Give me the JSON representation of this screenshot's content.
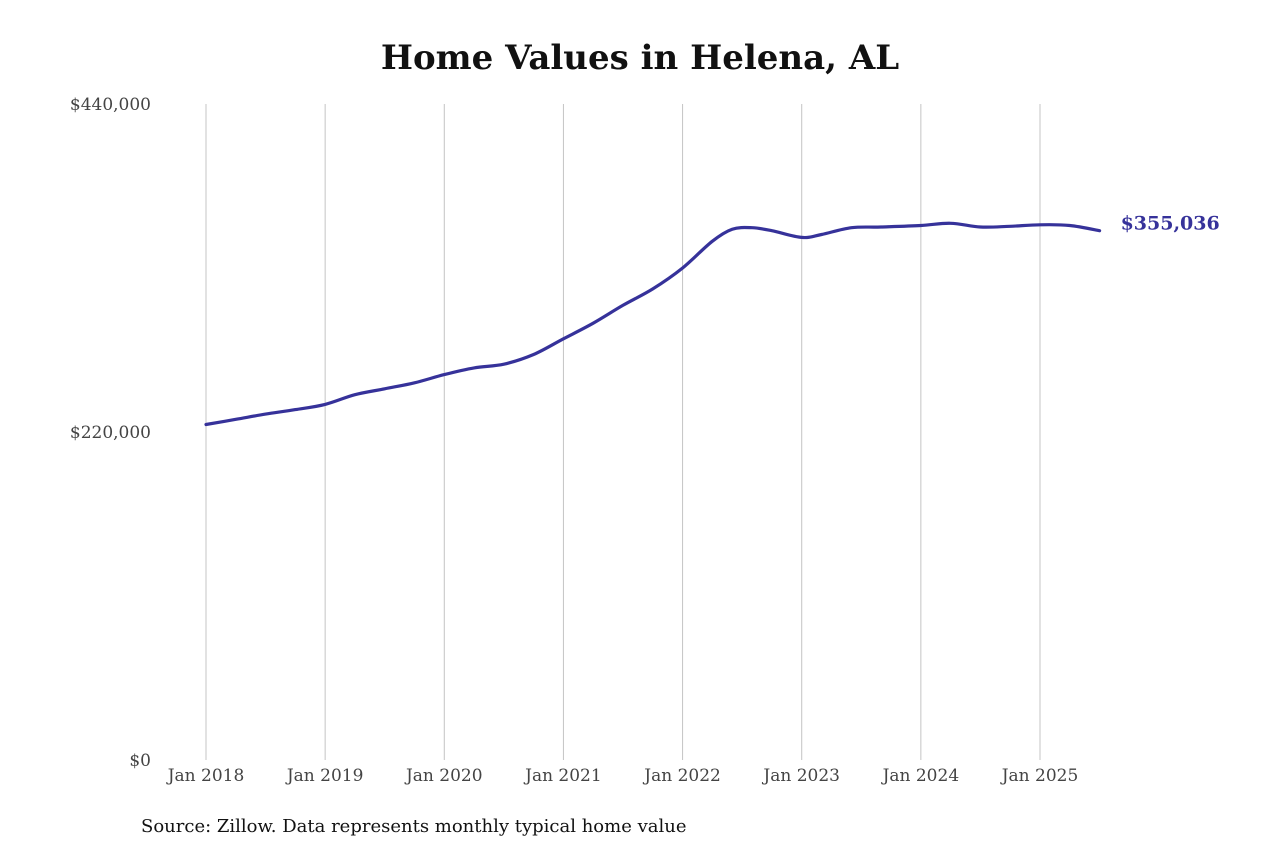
{
  "chart_data": {
    "type": "line",
    "title": "Home Values in Helena, AL",
    "xlabel": "",
    "ylabel": "",
    "ylim": [
      0,
      440000
    ],
    "y_ticks": [
      {
        "value": 0,
        "label": "$0"
      },
      {
        "value": 220000,
        "label": "$220,000"
      },
      {
        "value": 440000,
        "label": "$440,000"
      }
    ],
    "x_ticks": [
      "Jan 2018",
      "Jan 2019",
      "Jan 2020",
      "Jan 2021",
      "Jan 2022",
      "Jan 2023",
      "Jan 2024",
      "Jan 2025"
    ],
    "x_tick_dates": [
      "2018-01",
      "2019-01",
      "2020-01",
      "2021-01",
      "2022-01",
      "2023-01",
      "2024-01",
      "2025-01"
    ],
    "grid": {
      "vertical": true,
      "horizontal": false
    },
    "series": [
      {
        "color": "#36329a",
        "points": [
          [
            "2018-01",
            225000
          ],
          [
            "2018-04",
            228500
          ],
          [
            "2018-07",
            232000
          ],
          [
            "2018-10",
            235000
          ],
          [
            "2019-01",
            238500
          ],
          [
            "2019-04",
            245000
          ],
          [
            "2019-07",
            249000
          ],
          [
            "2019-10",
            253000
          ],
          [
            "2020-01",
            258500
          ],
          [
            "2020-04",
            263000
          ],
          [
            "2020-07",
            265500
          ],
          [
            "2020-10",
            272000
          ],
          [
            "2021-01",
            282500
          ],
          [
            "2021-04",
            293000
          ],
          [
            "2021-07",
            305000
          ],
          [
            "2021-10",
            316000
          ],
          [
            "2022-01",
            330000
          ],
          [
            "2022-04",
            348000
          ],
          [
            "2022-06",
            356000
          ],
          [
            "2022-08",
            357000
          ],
          [
            "2022-10",
            355000
          ],
          [
            "2023-01",
            350500
          ],
          [
            "2023-03",
            352500
          ],
          [
            "2023-06",
            357000
          ],
          [
            "2023-09",
            357500
          ],
          [
            "2024-01",
            358500
          ],
          [
            "2024-04",
            360000
          ],
          [
            "2024-07",
            357500
          ],
          [
            "2024-10",
            358000
          ],
          [
            "2025-01",
            359000
          ],
          [
            "2025-04",
            358500
          ],
          [
            "2025-07",
            355036
          ]
        ],
        "end_label": "$355,036"
      }
    ]
  },
  "footer": {
    "source": "Source: Zillow. Data represents monthly typical home value"
  }
}
